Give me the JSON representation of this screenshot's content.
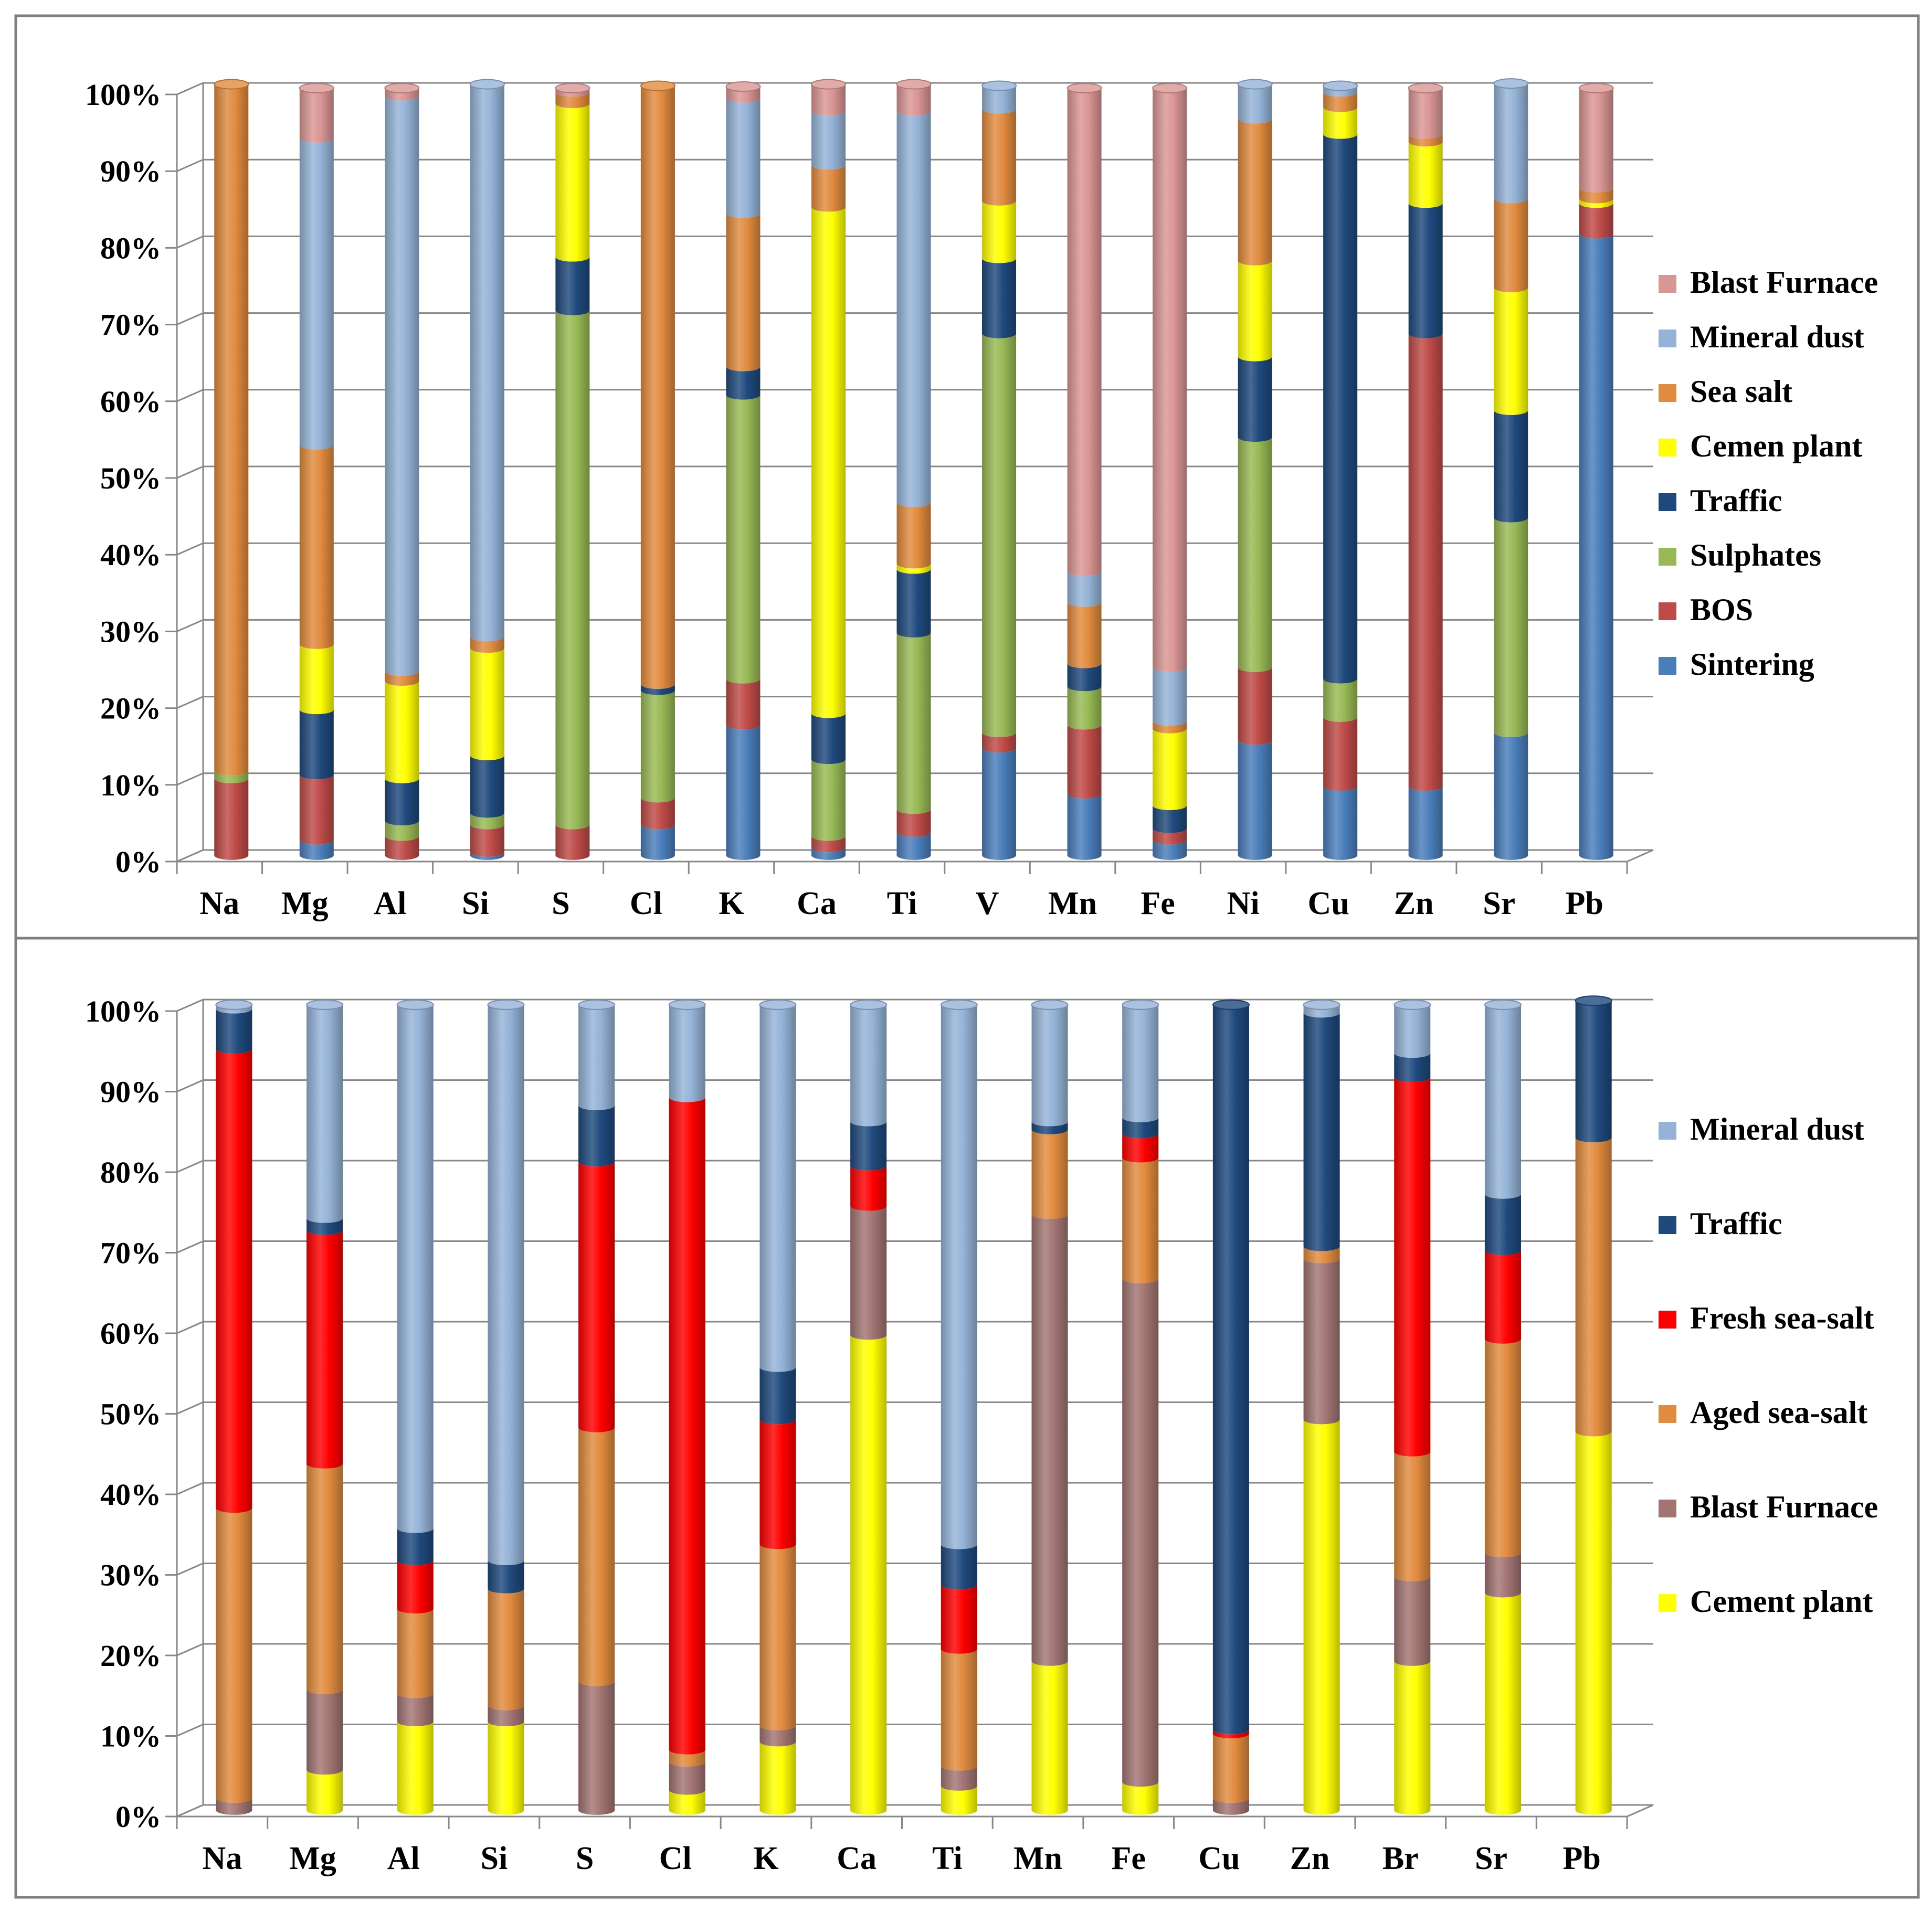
{
  "chart_data": [
    {
      "type": "bar",
      "stacked": true,
      "percent": true,
      "categories": [
        "Na",
        "Mg",
        "Al",
        "Si",
        "S",
        "Cl",
        "K",
        "Ca",
        "Ti",
        "V",
        "Mn",
        "Fe",
        "Ni",
        "Cu",
        "Zn",
        "Sr",
        "Pb"
      ],
      "yticks": [
        "0%",
        "10%",
        "20%",
        "30%",
        "40%",
        "50%",
        "60%",
        "70%",
        "80%",
        "90%",
        "100%"
      ],
      "ylim": [
        0,
        100
      ],
      "legend_position": "right",
      "series": [
        {
          "name": "Sintering",
          "color": "#4A7EBB",
          "values": [
            0,
            2,
            0,
            0.4,
            0,
            4,
            17,
            1,
            3,
            14,
            8,
            2,
            15,
            9,
            9,
            16,
            81
          ]
        },
        {
          "name": "BOS",
          "color": "#BE4B48",
          "values": [
            10,
            8.5,
            2.5,
            3.6,
            4,
            3.5,
            6,
            1.5,
            3,
            2,
            9,
            1.5,
            9.5,
            9,
            59,
            0,
            4
          ]
        },
        {
          "name": "Sulphates",
          "color": "#98B954",
          "values": [
            1,
            0,
            2,
            1.5,
            67,
            14,
            37,
            10,
            23,
            52,
            5,
            0,
            30,
            5,
            0,
            28,
            0
          ]
        },
        {
          "name": "Traffic",
          "color": "#1F497D",
          "values": [
            0,
            8.5,
            5.5,
            7.5,
            7,
            0.8,
            3.7,
            6,
            8.3,
            9.8,
            3,
            3,
            10.5,
            71,
            17,
            14,
            0
          ]
        },
        {
          "name": "Cemen plant",
          "color": "#FFFF00",
          "values": [
            0,
            8.5,
            12.7,
            14,
            20,
            0,
            0,
            66,
            0.7,
            7.5,
            0,
            10,
            12.5,
            3.5,
            8,
            16,
            0.6
          ]
        },
        {
          "name": "Sea salt",
          "color": "#E18B3E",
          "values": [
            89.5,
            26,
            1.3,
            1.5,
            1.5,
            78,
            20,
            5.5,
            8,
            12,
            8,
            1,
            18.5,
            2,
            1,
            11.6,
            1.4
          ]
        },
        {
          "name": "Mineral dust",
          "color": "#95B3D7",
          "values": [
            0,
            40,
            75,
            72,
            0,
            0,
            15,
            7,
            51,
            3,
            4,
            7,
            4.5,
            0.8,
            0,
            15,
            0
          ]
        },
        {
          "name": "Blast Furnace",
          "color": "#D99694",
          "values": [
            0,
            6.5,
            1,
            0,
            0.5,
            0,
            1.5,
            3.5,
            3.5,
            0,
            63,
            75.5,
            0,
            0,
            6,
            0,
            13
          ]
        }
      ]
    },
    {
      "type": "bar",
      "stacked": true,
      "percent": true,
      "categories": [
        "Na",
        "Mg",
        "Al",
        "Si",
        "S",
        "Cl",
        "K",
        "Ca",
        "Ti",
        "Mn",
        "Fe",
        "Cu",
        "Zn",
        "Br",
        "Sr",
        "Pb"
      ],
      "yticks": [
        "0%",
        "10%",
        "20%",
        "30%",
        "40%",
        "50%",
        "60%",
        "70%",
        "80%",
        "90%",
        "100%"
      ],
      "ylim": [
        0,
        100
      ],
      "legend_position": "right",
      "series": [
        {
          "name": "Cement plant",
          "color": "#FFFF00",
          "values": [
            0,
            5,
            11,
            11,
            0,
            2.5,
            8.5,
            59,
            3,
            18.5,
            3.5,
            0,
            48.5,
            18.5,
            27,
            47
          ]
        },
        {
          "name": "Blast Furnace",
          "color": "#A27573",
          "values": [
            1.5,
            10,
            3.5,
            2,
            16,
            3.5,
            2,
            16,
            2.5,
            55.5,
            62.5,
            1.5,
            20,
            10.5,
            5,
            0
          ]
        },
        {
          "name": "Aged sea-salt",
          "color": "#E18B3E",
          "values": [
            36,
            28,
            10.5,
            14.5,
            31.5,
            1.5,
            22.5,
            0,
            14.5,
            10.5,
            15,
            8,
            1.5,
            15.5,
            26.5,
            36.5
          ]
        },
        {
          "name": "Fresh sea-salt",
          "color": "#FF0000",
          "values": [
            57,
            29,
            6,
            0,
            33,
            81,
            15.5,
            5,
            8,
            0,
            3,
            0.5,
            0,
            46.5,
            11,
            0
          ]
        },
        {
          "name": "Traffic",
          "color": "#1F497D",
          "values": [
            5,
            1.5,
            4,
            3.5,
            7,
            0,
            6.5,
            5.5,
            5,
            1,
            2,
            90,
            29,
            3,
            7,
            17
          ]
        },
        {
          "name": "Mineral dust",
          "color": "#95B3D7",
          "values": [
            0.5,
            26.5,
            65,
            69,
            12.5,
            11.5,
            45,
            14.5,
            67,
            14.5,
            14,
            0,
            1,
            6,
            23.5,
            0
          ]
        }
      ]
    }
  ],
  "legends": [
    {
      "entries": [
        "Blast Furnace",
        "Mineral dust",
        "Sea salt",
        "Cemen plant",
        "Traffic",
        "Sulphates",
        "BOS",
        "Sintering"
      ]
    },
    {
      "entries": [
        "Mineral dust",
        "Traffic",
        "Fresh sea-salt",
        "Aged sea-salt",
        "Blast Furnace",
        "Cement plant"
      ]
    }
  ]
}
